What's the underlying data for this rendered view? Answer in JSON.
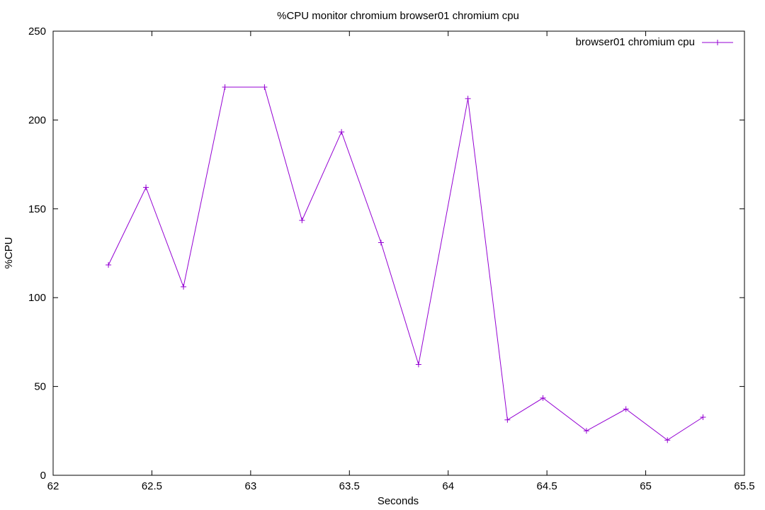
{
  "chart_data": {
    "type": "line",
    "title": "%CPU monitor chromium browser01 chromium cpu",
    "xlabel": "Seconds",
    "ylabel": "%CPU",
    "xlim": [
      62,
      65.5
    ],
    "ylim": [
      0,
      250
    ],
    "xticks": [
      62,
      62.5,
      63,
      63.5,
      64,
      64.5,
      65,
      65.5
    ],
    "xtick_labels": [
      "62",
      "62.5",
      "63",
      "63.5",
      "64",
      "64.5",
      "65",
      "65.5"
    ],
    "yticks": [
      0,
      50,
      100,
      150,
      200,
      250
    ],
    "ytick_labels": [
      "0",
      "50",
      "100",
      "150",
      "200",
      "250"
    ],
    "grid": false,
    "legend_position": "top-right",
    "series": [
      {
        "name": "browser01 chromium cpu",
        "color": "#9400d3",
        "marker": "plus",
        "x": [
          62.28,
          62.47,
          62.66,
          62.87,
          63.07,
          63.26,
          63.46,
          63.66,
          63.85,
          64.1,
          64.3,
          64.48,
          64.7,
          64.9,
          65.11,
          65.29
        ],
        "y": [
          118.4,
          162.1,
          106.1,
          218.5,
          218.5,
          143.5,
          193.3,
          131.0,
          62.4,
          212.0,
          31.2,
          43.5,
          25.0,
          37.3,
          19.8,
          32.7
        ]
      }
    ]
  }
}
